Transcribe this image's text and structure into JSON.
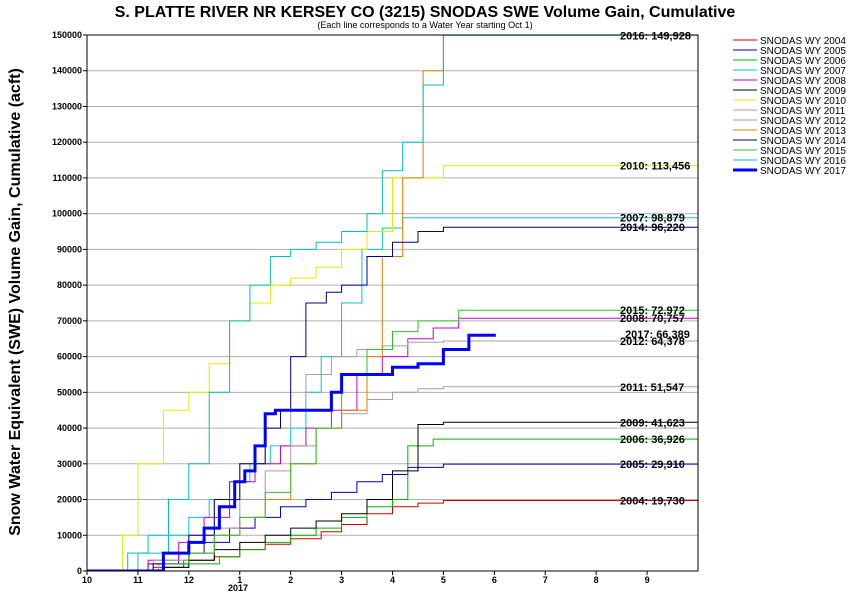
{
  "chart_data": {
    "type": "line",
    "title": "S. PLATTE RIVER NR KERSEY CO (3215) SNODAS SWE Volume Gain, Cumulative",
    "subtitle": "(Each line corresponds to a Water Year starting Oct 1)",
    "ylabel": "Snow Water Equivalent (SWE) Volume Gain, Cumulative (acft)",
    "xlabel": "",
    "year_label": "2017",
    "ylim": [
      0,
      150000
    ],
    "xlim": [
      10,
      22
    ],
    "x_ticks": [
      {
        "x": 10,
        "label": "10"
      },
      {
        "x": 11,
        "label": "11"
      },
      {
        "x": 12,
        "label": "12"
      },
      {
        "x": 13,
        "label": "1"
      },
      {
        "x": 14,
        "label": "2"
      },
      {
        "x": 15,
        "label": "3"
      },
      {
        "x": 16,
        "label": "4"
      },
      {
        "x": 17,
        "label": "5"
      },
      {
        "x": 18,
        "label": "6"
      },
      {
        "x": 19,
        "label": "7"
      },
      {
        "x": 20,
        "label": "8"
      },
      {
        "x": 21,
        "label": "9"
      }
    ],
    "y_ticks": [
      0,
      10000,
      20000,
      30000,
      40000,
      50000,
      60000,
      70000,
      80000,
      90000,
      100000,
      110000,
      120000,
      130000,
      140000,
      150000
    ],
    "grid": "horizontal",
    "legend_position": "right",
    "series": [
      {
        "name": "SNODAS WY 2004",
        "color": "#d40000",
        "width": 1,
        "end_label": "2004: 19,730",
        "x": [
          10,
          11.3,
          11.9,
          12.5,
          13.0,
          13.5,
          14.0,
          14.6,
          15.0,
          15.5,
          16.0,
          16.5,
          17.0,
          22
        ],
        "y": [
          0,
          1000,
          3000,
          4000,
          6000,
          7500,
          9000,
          11000,
          13000,
          16000,
          18000,
          19000,
          19730,
          19730
        ]
      },
      {
        "name": "SNODAS WY 2005",
        "color": "#0000c8",
        "width": 1,
        "end_label": "2005: 29,910",
        "x": [
          10,
          11.2,
          11.8,
          12.3,
          12.8,
          13.3,
          13.8,
          14.3,
          14.8,
          15.3,
          15.8,
          16.3,
          17.0,
          22
        ],
        "y": [
          0,
          2000,
          5000,
          8000,
          12000,
          15000,
          18000,
          20000,
          22000,
          25000,
          27000,
          29000,
          29910,
          29910
        ]
      },
      {
        "name": "SNODAS WY 2006",
        "color": "#00b400",
        "width": 1,
        "end_label": "2006: 36,926",
        "x": [
          10,
          11.5,
          12.0,
          12.6,
          13.0,
          13.5,
          14.0,
          14.5,
          15.0,
          15.5,
          16.0,
          16.3,
          16.8,
          22
        ],
        "y": [
          0,
          1000,
          2000,
          4000,
          6000,
          8000,
          10000,
          12000,
          15000,
          18000,
          20000,
          35000,
          36926,
          36926
        ]
      },
      {
        "name": "SNODAS WY 2007",
        "color": "#00c8c8",
        "width": 1,
        "end_label": "2007: 98,879",
        "x": [
          10,
          11.0,
          11.6,
          12.0,
          12.4,
          12.8,
          13.2,
          13.6,
          14.0,
          14.3,
          14.6,
          15.0,
          15.4,
          15.8,
          16.2,
          22
        ],
        "y": [
          0,
          5000,
          10000,
          15000,
          20000,
          25000,
          30000,
          35000,
          40000,
          50000,
          60000,
          75000,
          90000,
          96000,
          98879,
          98879
        ]
      },
      {
        "name": "SNODAS WY 2008",
        "color": "#c800c8",
        "width": 1,
        "end_label": "2008: 70,757",
        "x": [
          10,
          11.2,
          11.8,
          12.3,
          12.8,
          13.3,
          13.8,
          14.3,
          14.8,
          15.3,
          15.8,
          16.3,
          16.8,
          17.3,
          22
        ],
        "y": [
          0,
          3000,
          8000,
          15000,
          25000,
          30000,
          35000,
          40000,
          45000,
          55000,
          60000,
          65000,
          68000,
          70757,
          70757
        ]
      },
      {
        "name": "SNODAS WY 2009",
        "color": "#000000",
        "width": 1,
        "end_label": "2009: 41,623",
        "x": [
          10,
          11.5,
          12.0,
          12.5,
          13.0,
          13.5,
          14.0,
          14.5,
          15.0,
          15.5,
          16.0,
          16.5,
          17.0,
          22
        ],
        "y": [
          0,
          1000,
          3000,
          6000,
          8000,
          10000,
          12000,
          14000,
          16000,
          20000,
          28000,
          41000,
          41623,
          41623
        ]
      },
      {
        "name": "SNODAS WY 2010",
        "color": "#e8e800",
        "width": 1,
        "end_label": "2010: 113,456",
        "x": [
          10,
          10.7,
          11.0,
          11.5,
          12.0,
          12.4,
          12.8,
          13.2,
          13.6,
          14.0,
          14.5,
          15.0,
          15.5,
          16.0,
          17.0,
          22
        ],
        "y": [
          0,
          10000,
          30000,
          45000,
          50000,
          58000,
          70000,
          75000,
          80000,
          82000,
          85000,
          90000,
          95000,
          110000,
          113456,
          113456
        ]
      },
      {
        "name": "SNODAS WY 2011",
        "color": "#c090a0",
        "width": 1,
        "end_label": "2011: 51,547",
        "x": [
          10,
          11.4,
          12.0,
          12.5,
          13.0,
          13.5,
          14.0,
          14.5,
          15.0,
          15.5,
          16.0,
          16.5,
          17.0,
          22
        ],
        "y": [
          0,
          2000,
          5000,
          12000,
          20000,
          28000,
          35000,
          40000,
          44000,
          48000,
          50000,
          51000,
          51547,
          51547
        ]
      },
      {
        "name": "SNODAS WY 2012",
        "color": "#a0a0a0",
        "width": 1,
        "end_label": "2012: 64,378",
        "x": [
          10,
          11.3,
          12.0,
          12.5,
          13.0,
          13.5,
          14.0,
          14.3,
          14.8,
          15.3,
          15.8,
          16.3,
          17.0,
          22
        ],
        "y": [
          0,
          3000,
          10000,
          20000,
          30000,
          40000,
          45000,
          55000,
          60000,
          62000,
          63000,
          64000,
          64378,
          64378
        ]
      },
      {
        "name": "SNODAS WY 2013",
        "color": "#e08000",
        "width": 1,
        "end_label": "",
        "x": [
          10,
          11.5,
          12.0,
          12.5,
          13.0,
          13.5,
          14.0,
          14.5,
          15.0,
          15.5,
          15.8,
          16.2,
          16.6,
          17.0
        ],
        "y": [
          0,
          2000,
          5000,
          10000,
          15000,
          20000,
          30000,
          40000,
          45000,
          60000,
          88000,
          110000,
          140000,
          150000
        ]
      },
      {
        "name": "SNODAS WY 2014",
        "color": "#00008c",
        "width": 1,
        "end_label": "2014: 96,220",
        "x": [
          10,
          11.3,
          12.0,
          12.5,
          13.0,
          13.5,
          13.8,
          14.0,
          14.3,
          14.7,
          15.0,
          15.5,
          16.0,
          16.5,
          17.0,
          22
        ],
        "y": [
          0,
          2000,
          10000,
          20000,
          30000,
          40000,
          45000,
          60000,
          75000,
          78000,
          80000,
          88000,
          92000,
          95000,
          96220,
          96220
        ]
      },
      {
        "name": "SNODAS WY 2015",
        "color": "#30c030",
        "width": 1,
        "end_label": "2015: 72,972",
        "x": [
          10,
          11.5,
          12.0,
          12.5,
          13.0,
          13.5,
          14.0,
          14.5,
          15.0,
          15.5,
          16.0,
          16.5,
          17.3,
          22
        ],
        "y": [
          0,
          2000,
          5000,
          10000,
          15000,
          22000,
          30000,
          40000,
          55000,
          62000,
          67000,
          70000,
          72972,
          72972
        ]
      },
      {
        "name": "SNODAS WY 2016",
        "color": "#00c0c0",
        "width": 1,
        "end_label": "2016: 149,928",
        "x": [
          10,
          10.8,
          11.2,
          11.6,
          12.0,
          12.4,
          12.8,
          13.2,
          13.6,
          14.0,
          14.5,
          15.0,
          15.5,
          15.8,
          16.2,
          16.6,
          17.0,
          22
        ],
        "y": [
          0,
          5000,
          10000,
          20000,
          30000,
          50000,
          70000,
          80000,
          88000,
          90000,
          92000,
          95000,
          100000,
          112000,
          120000,
          136000,
          149928,
          149928
        ]
      },
      {
        "name": "SNODAS WY 2017",
        "color": "#0000ff",
        "width": 3,
        "end_label": "2017: 66,389",
        "x": [
          10,
          11.0,
          11.5,
          12.0,
          12.3,
          12.6,
          12.9,
          13.1,
          13.3,
          13.5,
          13.7,
          14.0,
          14.5,
          14.8,
          15.0,
          15.5,
          16.0,
          16.5,
          17.0,
          17.5,
          18.0
        ],
        "y": [
          0,
          0,
          5000,
          8000,
          12000,
          18000,
          25000,
          28000,
          35000,
          44000,
          45000,
          45000,
          45000,
          50000,
          55000,
          55000,
          57000,
          58000,
          62000,
          66000,
          66389
        ]
      }
    ]
  }
}
